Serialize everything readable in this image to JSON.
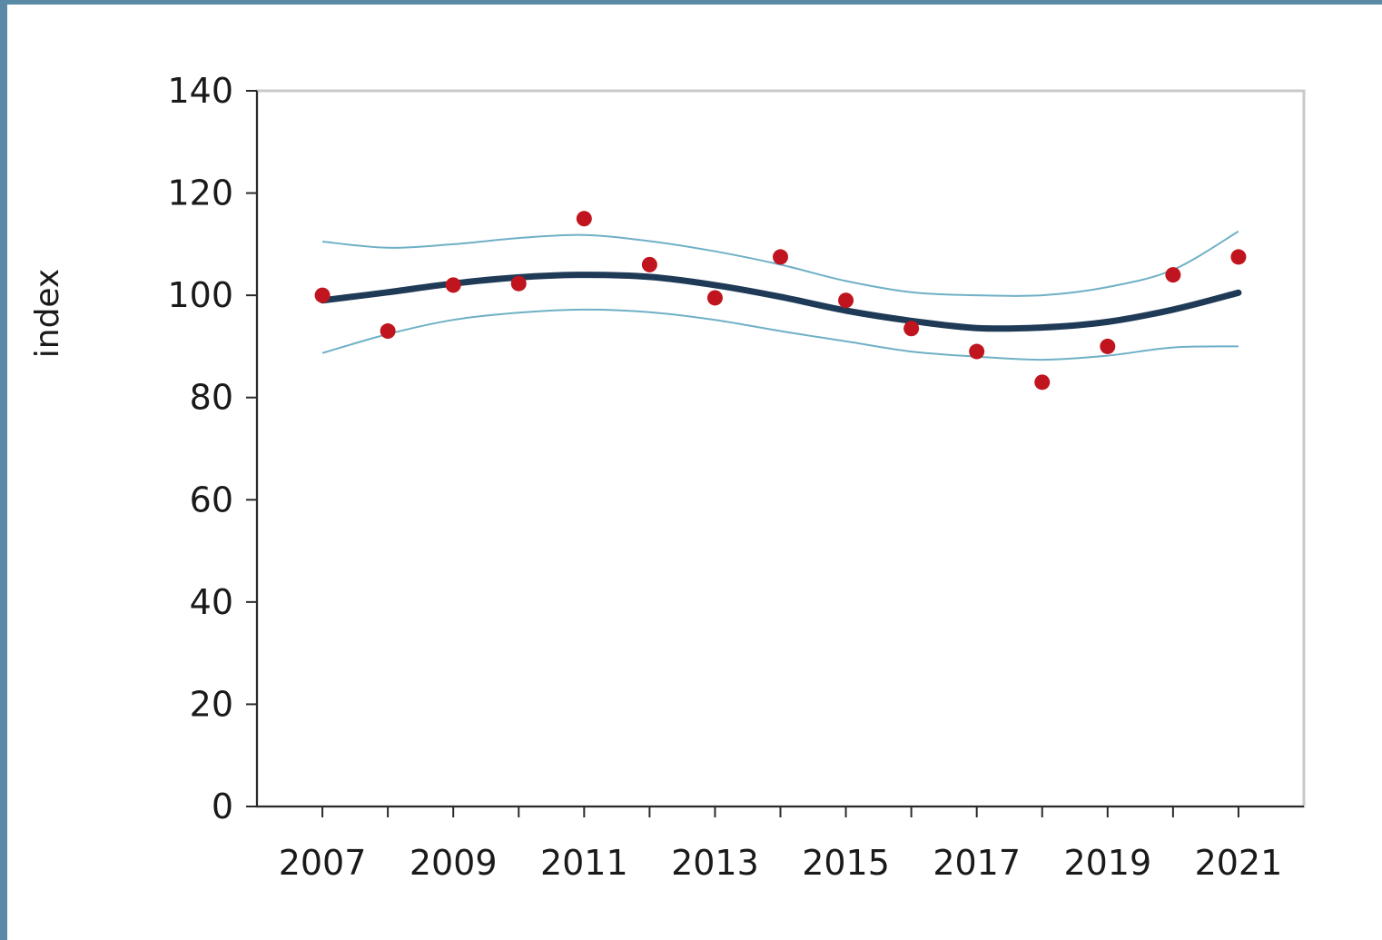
{
  "colors": {
    "frame": "#5a8aa6",
    "plot_border": "#c9c9c9",
    "trend": "#1f3a56",
    "band": "#6fb0c6",
    "points": "#c0141f"
  },
  "chart_data": {
    "type": "scatter",
    "ylabel": "index",
    "xlabel": "",
    "title": "",
    "xlim": [
      2006,
      2022
    ],
    "ylim": [
      0,
      140
    ],
    "x_ticks": [
      2007,
      2008,
      2009,
      2010,
      2011,
      2012,
      2013,
      2014,
      2015,
      2016,
      2017,
      2018,
      2019,
      2020,
      2021
    ],
    "x_tick_labels": [
      "2007",
      "2009",
      "2011",
      "2013",
      "2015",
      "2017",
      "2019",
      "2021"
    ],
    "x_tick_label_years": [
      2007,
      2009,
      2011,
      2013,
      2015,
      2017,
      2019,
      2021
    ],
    "y_ticks": [
      0,
      20,
      40,
      60,
      80,
      100,
      120,
      140
    ],
    "y_tick_labels": [
      "0",
      "20",
      "40",
      "60",
      "80",
      "100",
      "120",
      "140"
    ],
    "grid": false,
    "points": {
      "x": [
        2007,
        2008,
        2009,
        2010,
        2011,
        2012,
        2013,
        2014,
        2015,
        2016,
        2017,
        2018,
        2019,
        2020,
        2021
      ],
      "y": [
        100,
        93,
        102,
        102.3,
        115,
        106,
        99.5,
        107.5,
        99,
        93.5,
        89,
        83,
        90,
        104,
        107.5
      ]
    },
    "trend": {
      "x": [
        2007,
        2008,
        2009,
        2010,
        2011,
        2012,
        2013,
        2014,
        2015,
        2016,
        2017,
        2018,
        2019,
        2020,
        2021
      ],
      "y": [
        99,
        100.6,
        102.3,
        103.5,
        104,
        103.6,
        102,
        99.7,
        97,
        95,
        93.6,
        93.7,
        94.8,
        97.2,
        100.5
      ]
    },
    "upper_band": {
      "x": [
        2007,
        2008,
        2009,
        2010,
        2011,
        2012,
        2013,
        2014,
        2015,
        2016,
        2017,
        2018,
        2019,
        2020,
        2021
      ],
      "y": [
        110.5,
        109.3,
        110,
        111.2,
        111.8,
        110.6,
        108.6,
        106,
        102.8,
        100.6,
        100,
        100,
        101.6,
        105,
        112.5
      ]
    },
    "lower_band": {
      "x": [
        2007,
        2008,
        2009,
        2010,
        2011,
        2012,
        2013,
        2014,
        2015,
        2016,
        2017,
        2018,
        2019,
        2020,
        2021
      ],
      "y": [
        88.7,
        92.4,
        95.2,
        96.6,
        97.2,
        96.7,
        95.2,
        93,
        91,
        89,
        88,
        87.4,
        88.2,
        89.8,
        90
      ]
    }
  }
}
